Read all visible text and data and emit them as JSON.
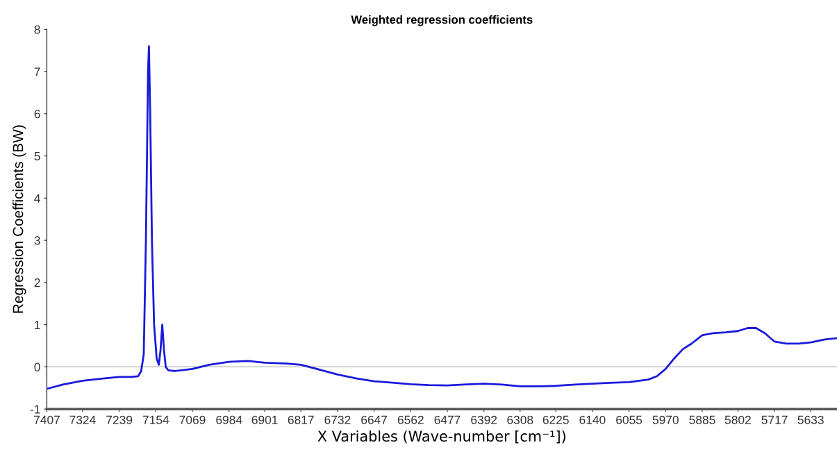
{
  "chart_data": {
    "type": "line",
    "title": "Weighted regression coefficients",
    "xlabel": "X Variables (Wave-number [cm⁻¹])",
    "ylabel": "Regression Coefficients (BW)",
    "xlim": [
      7407,
      5572
    ],
    "xticks": [
      7407,
      7324,
      7239,
      7154,
      7069,
      6984,
      6901,
      6817,
      6732,
      6647,
      6562,
      6477,
      6392,
      6308,
      6225,
      6140,
      6055,
      5970,
      5885,
      5802,
      5717,
      5633
    ],
    "ylim": [
      -1,
      8
    ],
    "yticks": [
      -1,
      0,
      1,
      2,
      3,
      4,
      5,
      6,
      7,
      8
    ],
    "grid": false,
    "marker": "none",
    "line_style": "solid",
    "ref_lines": [
      {
        "axis": "y",
        "value": 0,
        "color": "#b0b0b0"
      }
    ],
    "series": [
      {
        "color": "#1a1adc",
        "x": [
          7407,
          7370,
          7324,
          7280,
          7239,
          7210,
          7195,
          7188,
          7182,
          7177,
          7172,
          7170,
          7167,
          7163,
          7158,
          7152,
          7147,
          7143,
          7139,
          7135,
          7131,
          7125,
          7110,
          7069,
          7030,
          6984,
          6940,
          6901,
          6850,
          6817,
          6780,
          6732,
          6690,
          6647,
          6600,
          6562,
          6520,
          6477,
          6440,
          6392,
          6350,
          6308,
          6260,
          6225,
          6180,
          6140,
          6100,
          6055,
          6010,
          5990,
          5970,
          5950,
          5930,
          5910,
          5885,
          5860,
          5830,
          5802,
          5780,
          5760,
          5740,
          5717,
          5690,
          5660,
          5633,
          5600,
          5572
        ],
        "values": [
          -0.52,
          -0.42,
          -0.33,
          -0.28,
          -0.24,
          -0.24,
          -0.22,
          -0.1,
          0.3,
          3,
          7.0,
          7.6,
          6,
          3,
          1,
          0.2,
          0.05,
          0.4,
          1.0,
          0.4,
          0.0,
          -0.08,
          -0.1,
          -0.05,
          0.05,
          0.12,
          0.14,
          0.1,
          0.08,
          0.05,
          -0.05,
          -0.18,
          -0.27,
          -0.34,
          -0.38,
          -0.41,
          -0.43,
          -0.44,
          -0.42,
          -0.4,
          -0.42,
          -0.46,
          -0.46,
          -0.45,
          -0.42,
          -0.4,
          -0.38,
          -0.36,
          -0.3,
          -0.22,
          -0.05,
          0.2,
          0.42,
          0.55,
          0.75,
          0.8,
          0.82,
          0.85,
          0.92,
          0.92,
          0.8,
          0.6,
          0.55,
          0.55,
          0.58,
          0.65,
          0.68
        ]
      }
    ]
  }
}
